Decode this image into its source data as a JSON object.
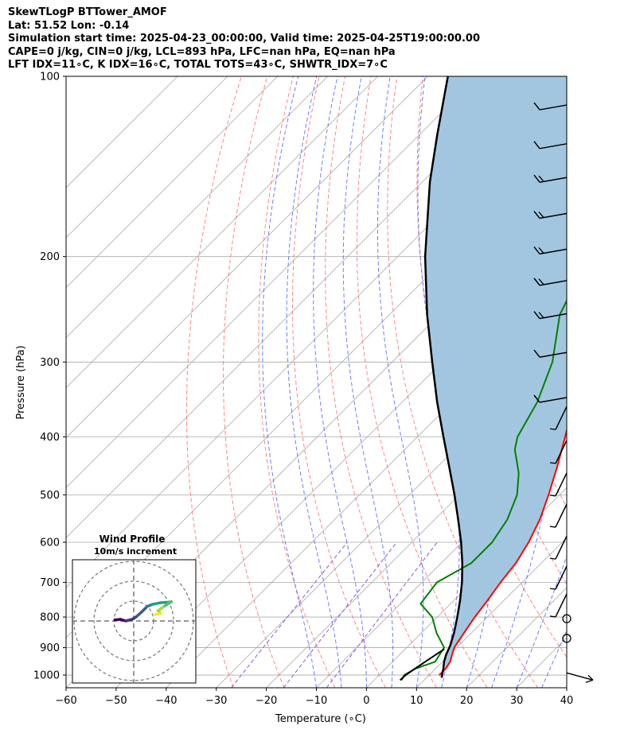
{
  "header": {
    "line1": "SkewTLogP BTTower_AMOF",
    "line2": "Lat: 51.52   Lon: -0.14",
    "line3": "Simulation start time: 2025-04-23_00:00:00, Valid time: 2025-04-25T19:00:00.00",
    "line4": "CAPE=0 j/kg, CIN=0 j/kg, LCL=893 hPa, LFC=nan hPa, EQ=nan hPa",
    "line5": "LFT IDX=11∘C, K IDX=16∘C, TOTAL TOTS=43∘C, SHWTR_IDX=7∘C"
  },
  "colors": {
    "temperature": "#ff0000",
    "dewpoint": "#008000",
    "parcel": "#000000",
    "cape_fill": "#a3c6e0",
    "dry_adiabat": "#ff6666",
    "moist_adiabat": "#5566ff",
    "mixing_ratio": "#9955cc",
    "isotherm": "#aaaaaa"
  },
  "chart_data": [
    {
      "type": "line",
      "subtype": "skew-t log-p",
      "xlabel": "Temperature (∘C)",
      "ylabel": "Pressure (hPa)",
      "xlim": [
        -60,
        40
      ],
      "ylim": [
        1050,
        100
      ],
      "y_scale": "log",
      "x_ticks": [
        -60,
        -50,
        -40,
        -30,
        -20,
        -10,
        0,
        10,
        20,
        30,
        40
      ],
      "x_tick_labels": [
        "−60",
        "−50",
        "−40",
        "−30",
        "−20",
        "−10",
        "0",
        "10",
        "20",
        "30",
        "40"
      ],
      "y_ticks": [
        100,
        200,
        300,
        400,
        500,
        600,
        700,
        800,
        900,
        1000
      ],
      "grid": true,
      "series": [
        {
          "role": "temperature",
          "values": [
            [
              1000,
              12
            ],
            [
              975,
              12
            ],
            [
              950,
              11.5
            ],
            [
              925,
              10.5
            ],
            [
              900,
              9.5
            ],
            [
              850,
              8.5
            ],
            [
              800,
              7.5
            ],
            [
              750,
              6.7
            ],
            [
              700,
              5.7
            ],
            [
              650,
              4.9
            ],
            [
              600,
              3.3
            ],
            [
              550,
              1.0
            ],
            [
              500,
              -2.2
            ],
            [
              450,
              -6.0
            ],
            [
              400,
              -10.5
            ],
            [
              350,
              -15.6
            ],
            [
              300,
              -21.5
            ],
            [
              250,
              -29.0
            ],
            [
              220,
              -34.0
            ],
            [
              200,
              -38.5
            ],
            [
              185,
              -41.5
            ],
            [
              160,
              -42.5
            ],
            [
              140,
              -46.5
            ],
            [
              120,
              -50.0
            ],
            [
              110,
              -53.0
            ],
            [
              100,
              -56.0
            ]
          ]
        },
        {
          "role": "dewpoint",
          "values": [
            [
              1020,
              5.5
            ],
            [
              1000,
              5.0
            ],
            [
              975,
              6.0
            ],
            [
              950,
              8.5
            ],
            [
              900,
              7.5
            ],
            [
              850,
              3.0
            ],
            [
              800,
              -1.0
            ],
            [
              760,
              -6.0
            ],
            [
              700,
              -7.0
            ],
            [
              650,
              -4.0
            ],
            [
              600,
              -4.0
            ],
            [
              550,
              -5.5
            ],
            [
              500,
              -8.5
            ],
            [
              460,
              -12.5
            ],
            [
              420,
              -18.0
            ],
            [
              400,
              -20.0
            ],
            [
              350,
              -23.0
            ],
            [
              300,
              -28.0
            ],
            [
              250,
              -36.0
            ],
            [
              210,
              -40.5
            ],
            [
              200,
              -41.5
            ],
            [
              190,
              -42.0
            ],
            [
              175,
              -42.5
            ],
            [
              160,
              -45.5
            ],
            [
              140,
              -53.0
            ],
            [
              125,
              -56.5
            ],
            [
              110,
              -60.0
            ],
            [
              100,
              -63.5
            ]
          ]
        },
        {
          "role": "parcel",
          "values": [
            [
              1010,
              13.0
            ],
            [
              975,
              11.5
            ],
            [
              950,
              10.3
            ],
            [
              925,
              9.3
            ],
            [
              893,
              8.3
            ],
            [
              850,
              6.5
            ],
            [
              800,
              4.0
            ],
            [
              750,
              1.2
            ],
            [
              700,
              -2.0
            ],
            [
              650,
              -5.8
            ],
            [
              600,
              -10.2
            ],
            [
              550,
              -15.3
            ],
            [
              500,
              -21.0
            ],
            [
              450,
              -27.5
            ],
            [
              400,
              -34.8
            ],
            [
              350,
              -43.0
            ],
            [
              300,
              -52.0
            ],
            [
              250,
              -62.5
            ],
            [
              200,
              -74.5
            ],
            [
              150,
              -88.5
            ],
            [
              125,
              -96.5
            ],
            [
              100,
              -106.0
            ]
          ]
        },
        {
          "role": "parcel-lower",
          "values": [
            [
              1020,
              5.2
            ],
            [
              1000,
              5.3
            ],
            [
              970,
              6.0
            ],
            [
              940,
              6.8
            ],
            [
              905,
              7.8
            ]
          ]
        }
      ],
      "wind_barbs": {
        "pressures": [
          112,
          130,
          148,
          170,
          195,
          220,
          250,
          290,
          345,
          395,
          450,
          510,
          575,
          650,
          730,
          812
        ],
        "note": "westerly winds at all levels"
      },
      "calm_markers": [
        825,
        890
      ],
      "surface_wind_pressure": 1010
    },
    {
      "type": "line",
      "subtype": "hodograph",
      "title": "Wind Profile",
      "subtitle": "10m/s increment",
      "rings": 3,
      "trace": [
        [
          -3.5,
          0.2
        ],
        [
          -2.5,
          0.3
        ],
        [
          -1.5,
          0.0
        ],
        [
          -0.3,
          0.3
        ],
        [
          0.5,
          0.8
        ],
        [
          1.5,
          1.7
        ],
        [
          2.5,
          2.7
        ],
        [
          3.5,
          3.1
        ],
        [
          5.0,
          3.4
        ],
        [
          6.5,
          3.5
        ],
        [
          7.0,
          3.6
        ],
        [
          5.5,
          2.6
        ],
        [
          4.5,
          1.9
        ],
        [
          5.0,
          1.4
        ],
        [
          4.0,
          1.2
        ]
      ]
    }
  ]
}
